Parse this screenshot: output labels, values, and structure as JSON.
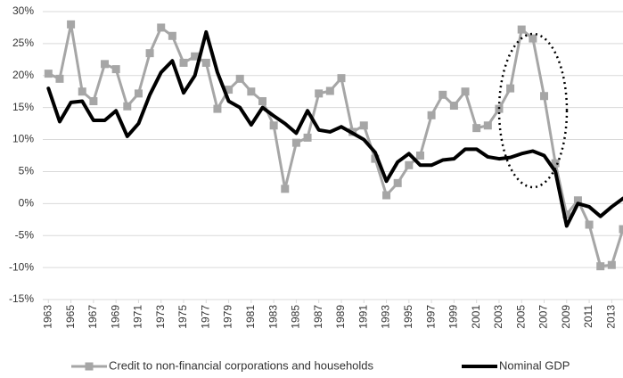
{
  "chart_data": {
    "type": "line",
    "x": [
      1963,
      1964,
      1965,
      1966,
      1967,
      1968,
      1969,
      1970,
      1971,
      1972,
      1973,
      1974,
      1975,
      1976,
      1977,
      1978,
      1979,
      1980,
      1981,
      1982,
      1983,
      1984,
      1985,
      1986,
      1987,
      1988,
      1989,
      1990,
      1991,
      1992,
      1993,
      1994,
      1995,
      1996,
      1997,
      1998,
      1999,
      2000,
      2001,
      2002,
      2003,
      2004,
      2005,
      2006,
      2007,
      2008,
      2009,
      2010,
      2011,
      2012,
      2013,
      2014
    ],
    "series": [
      {
        "name": "Credit to non-financial corporations and households",
        "color": "#a6a6a6",
        "marker": "square",
        "values": [
          20.3,
          19.5,
          28,
          17.5,
          16,
          21.8,
          21,
          15.2,
          17.2,
          23.5,
          27.5,
          26.2,
          22,
          23,
          22,
          14.8,
          17.8,
          19.5,
          17.5,
          16,
          12.2,
          2.3,
          9.5,
          10.3,
          17.2,
          17.6,
          19.6,
          11.2,
          12.2,
          7,
          1.3,
          3.2,
          6,
          7.5,
          13.8,
          17,
          15.3,
          17.5,
          11.8,
          12.2,
          14.8,
          18,
          27.2,
          25.8,
          16.8,
          6.3,
          -1.7,
          0.5,
          -3.3,
          -9.8,
          -9.6,
          -4
        ]
      },
      {
        "name": "Nominal GDP",
        "color": "#000000",
        "values": [
          18,
          12.8,
          15.8,
          16,
          13,
          13,
          14.5,
          10.5,
          12.5,
          17,
          20.5,
          22.3,
          17.3,
          20,
          26.8,
          20.5,
          16,
          15,
          12.3,
          15,
          13.7,
          12.5,
          11,
          14.5,
          11.5,
          11.2,
          12,
          11,
          10,
          8,
          3.5,
          6.5,
          7.8,
          6,
          6,
          6.8,
          7,
          8.5,
          8.5,
          7.3,
          7,
          7.2,
          7.8,
          8.2,
          7.5,
          5,
          -3.5,
          0,
          -0.5,
          -2,
          -0.5,
          0.8
        ]
      }
    ],
    "xlim": [
      1962.5,
      2014
    ],
    "xticks": [
      1963,
      1965,
      1967,
      1969,
      1971,
      1973,
      1975,
      1977,
      1979,
      1981,
      1983,
      1985,
      1987,
      1989,
      1991,
      1993,
      1995,
      1997,
      1999,
      2001,
      2003,
      2005,
      2007,
      2009,
      2011,
      2013
    ],
    "ylim": [
      -15,
      30
    ],
    "yticks": [
      {
        "value": -15,
        "label": "-15%"
      },
      {
        "value": -10,
        "label": "-10%"
      },
      {
        "value": -5,
        "label": "-5%"
      },
      {
        "value": 0,
        "label": "0%"
      },
      {
        "value": 5,
        "label": "5%"
      },
      {
        "value": 10,
        "label": "10%"
      },
      {
        "value": 15,
        "label": "15%"
      },
      {
        "value": 20,
        "label": "20%"
      },
      {
        "value": 25,
        "label": "25%"
      },
      {
        "value": 30,
        "label": "30%"
      }
    ],
    "grid": true,
    "legend": "bottom"
  }
}
